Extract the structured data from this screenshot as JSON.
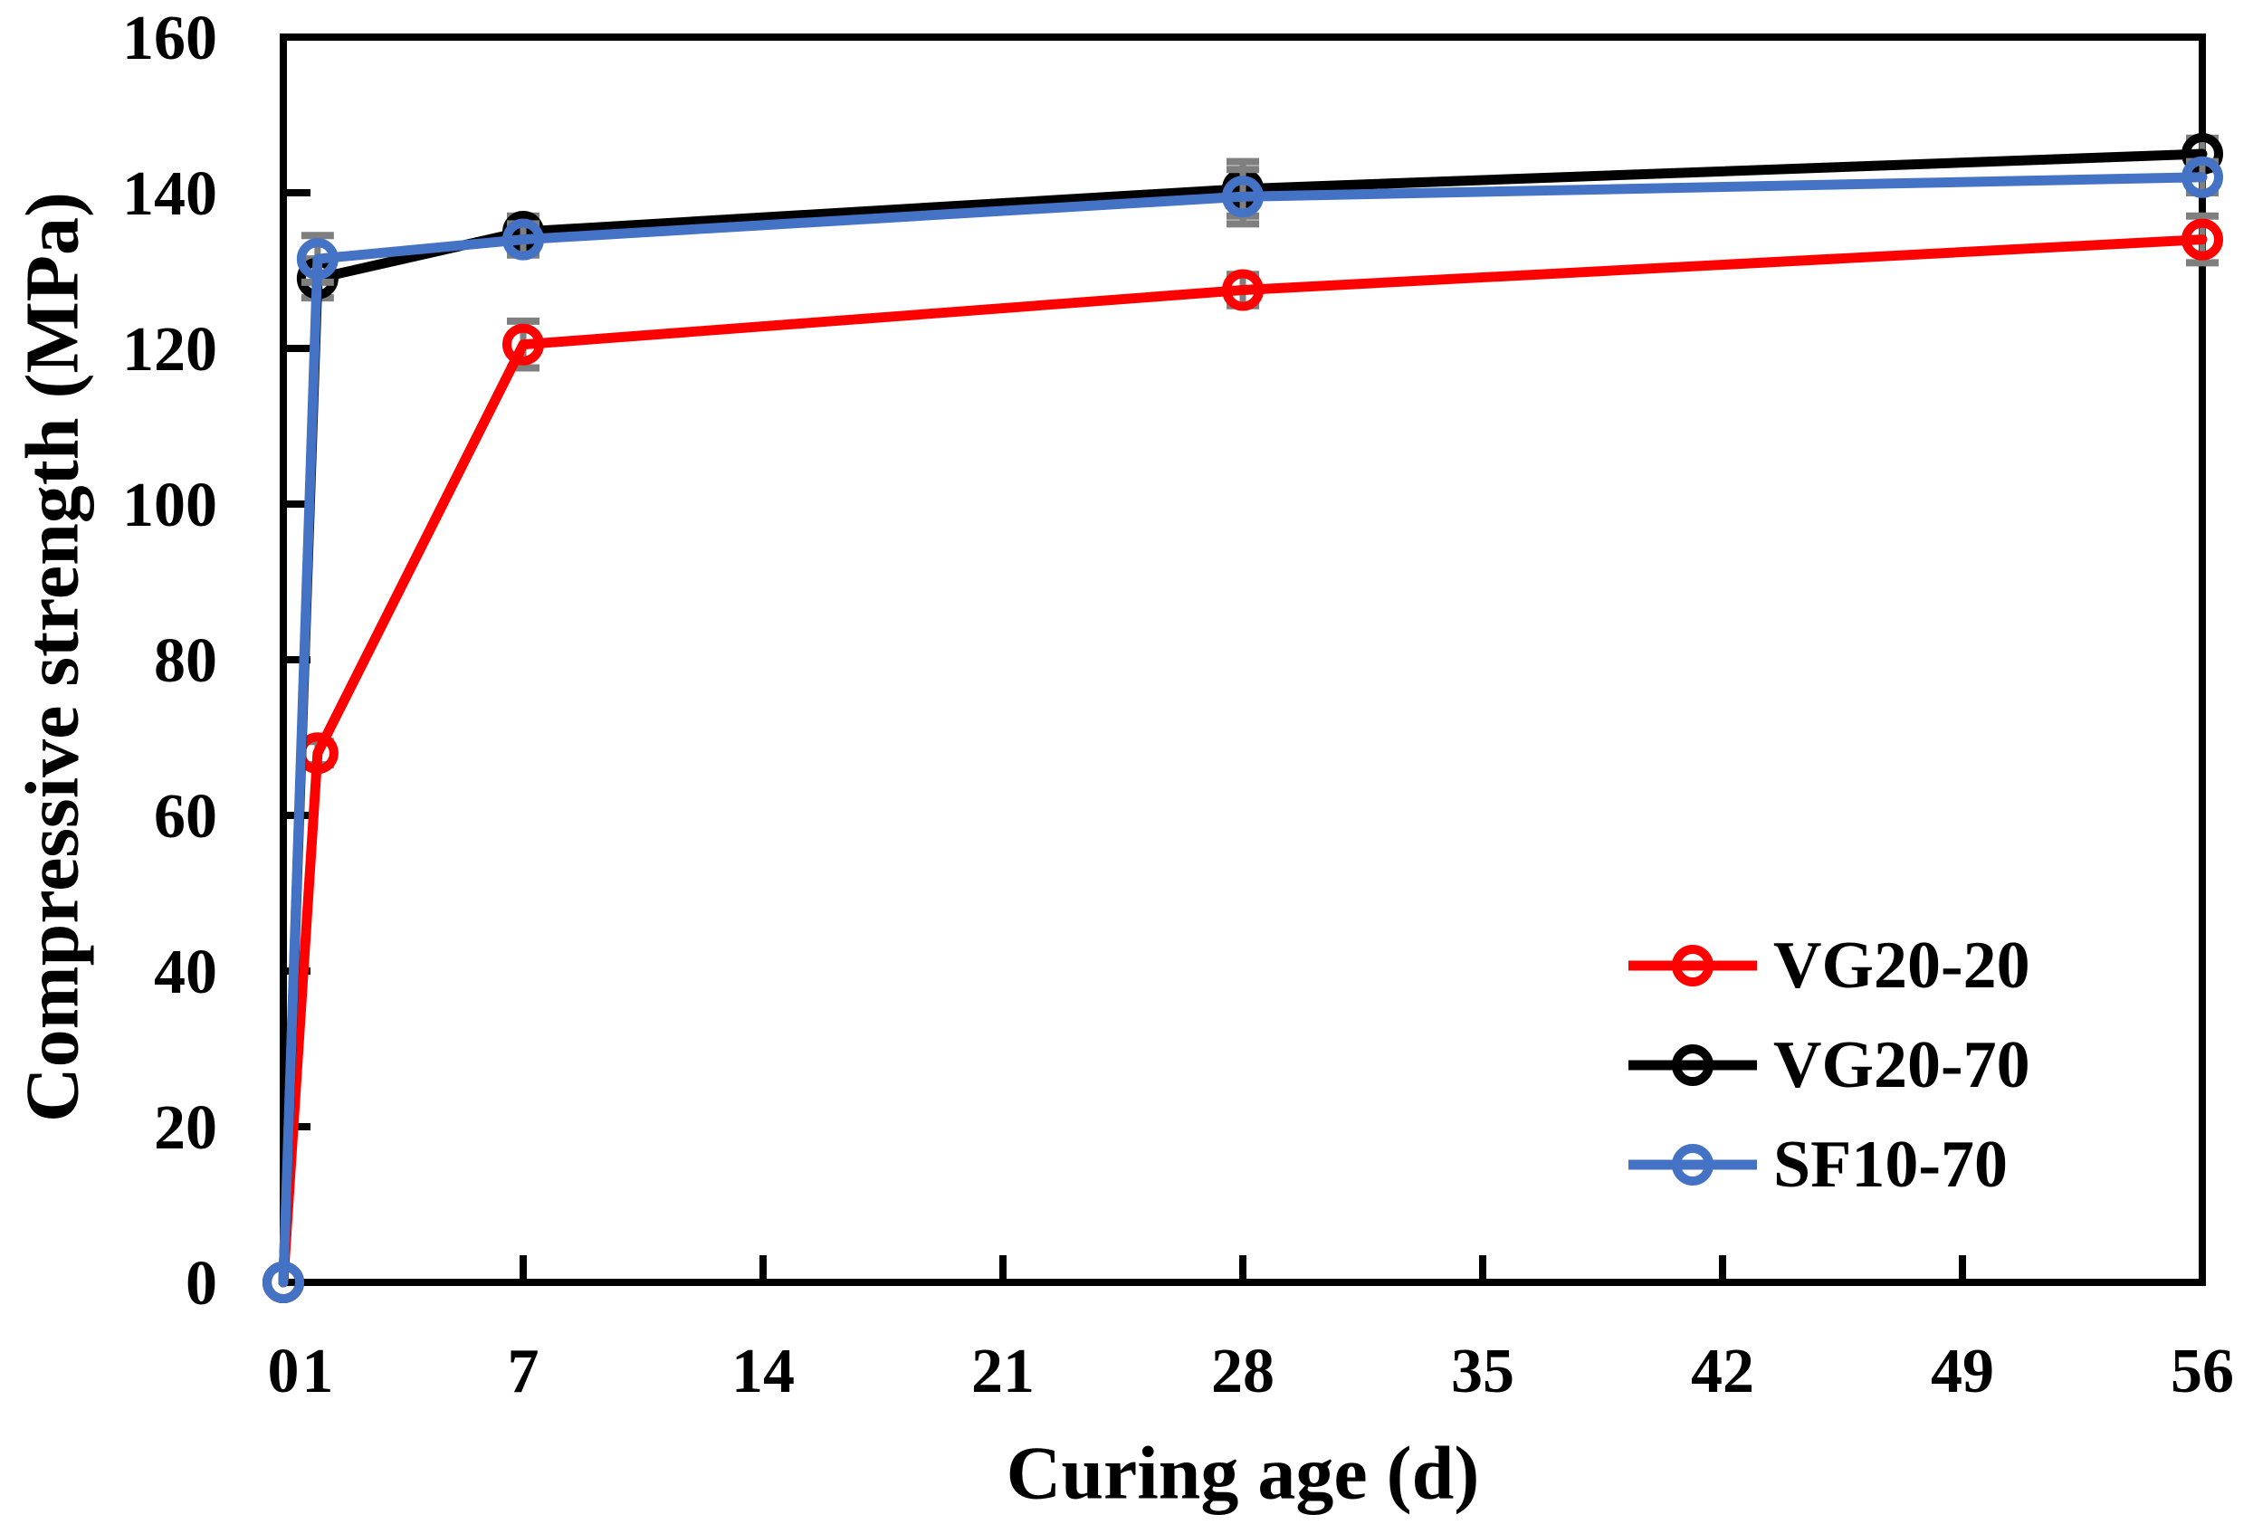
{
  "chart_data": {
    "type": "line",
    "title": "",
    "xlabel": "Curing age (d)",
    "ylabel": "Compressive strength (MPa)",
    "xlim": [
      0,
      56
    ],
    "ylim": [
      0,
      160
    ],
    "x_major_ticks": [
      0,
      7,
      14,
      21,
      28,
      35,
      42,
      49,
      56
    ],
    "x_tick_labels": [
      "0",
      "1",
      "7",
      "14",
      "21",
      "28",
      "35",
      "42",
      "49",
      "56"
    ],
    "x_tick_label_positions": [
      0,
      1,
      7,
      14,
      21,
      28,
      35,
      42,
      49,
      56
    ],
    "y_ticks": [
      0,
      20,
      40,
      60,
      80,
      100,
      120,
      140,
      160
    ],
    "grid": false,
    "legend_position": "lower-right",
    "marker": "open-circle",
    "error_bar_color": "#7F7F7F",
    "frame_color": "#000000",
    "series": [
      {
        "name": "VG20-20",
        "color": "#FF0000",
        "x": [
          0,
          1,
          7,
          28,
          56
        ],
        "y": [
          0,
          68,
          120.5,
          127.5,
          134
        ],
        "err": [
          0,
          1.5,
          3,
          2,
          3
        ]
      },
      {
        "name": "VG20-70",
        "color": "#000000",
        "x": [
          0,
          1,
          7,
          28,
          56
        ],
        "y": [
          0,
          129,
          135,
          140.5,
          145
        ],
        "err": [
          0,
          2.5,
          2,
          3.5,
          2
        ]
      },
      {
        "name": "SF10-70",
        "color": "#4472C4",
        "x": [
          0,
          1,
          7,
          28,
          56
        ],
        "y": [
          0,
          131.5,
          134,
          139.5,
          142
        ],
        "err": [
          0,
          3,
          2,
          3.5,
          2
        ]
      }
    ]
  }
}
